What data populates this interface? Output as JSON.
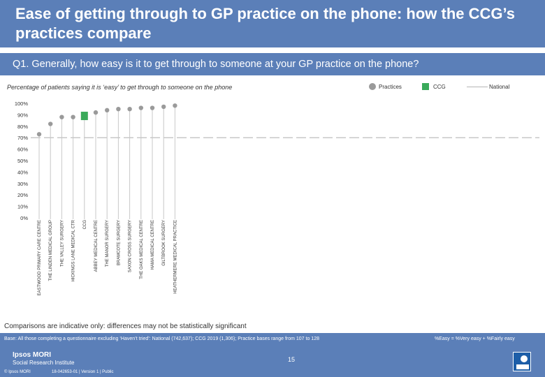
{
  "header": {
    "title": "Ease of getting through to GP practice on the phone: how the CCG’s practices compare",
    "question": "Q1. Generally, how easy is it to get through to someone at your GP practice on the phone?"
  },
  "subtitle": "Percentage of patients saying it is ‘easy’ to get through to someone on the phone",
  "legend": {
    "practices": "Practices",
    "ccg": "CCG",
    "national": "National"
  },
  "chart_data": {
    "type": "scatter",
    "categories": [
      "EASTWOOD PRIMARY CARE CENTRE",
      "THE LINDEN MEDICAL GROUP",
      "THE VALLEY SURGERY",
      "HICKINGS LANE MEDICAL CTR",
      "CCG",
      "ABBEY MEDICAL CENTRE",
      "THE MANOR SURGERY",
      "BRAMCOTE SURGERY",
      "SAXON CROSS SURGERY",
      "THE OAKS MEDICAL CENTRE",
      "HAMA MEDICAL CENTRE",
      "GILTBROOK SURGERY",
      "HEATHERMERE MEDICAL PRACTICE"
    ],
    "series": [
      {
        "name": "Practices",
        "values": [
          73,
          82,
          88,
          88,
          null,
          92,
          94,
          95,
          95,
          96,
          96,
          97,
          98
        ]
      },
      {
        "name": "CCG",
        "values": [
          null,
          null,
          null,
          null,
          89,
          null,
          null,
          null,
          null,
          null,
          null,
          null,
          null
        ]
      }
    ],
    "national": 70,
    "ylim": [
      0,
      100
    ],
    "yticks": [
      "0%",
      "10%",
      "20%",
      "30%",
      "40%",
      "50%",
      "60%",
      "70%",
      "80%",
      "90%",
      "100%"
    ],
    "colors": {
      "practices": "#9a9a9a",
      "ccg": "#3aaa5a",
      "national": "#b5b5b5",
      "stem": "#c8c8c8"
    }
  },
  "footer": {
    "note": "Comparisons are indicative only: differences may not be statistically significant",
    "base": "Base: All those completing a questionnaire excluding ‘Haven’t tried’: National (742,637); CCG 2019 (1,306); Practice bases range from 107 to 128",
    "formula": "%Easy = %Very easy + %Fairly easy",
    "logo_name": "Ipsos MORI",
    "logo_sub": "Social Research Institute",
    "copyright": "© Ipsos MORI",
    "jobref": "18-042653-01 | Version 1 | Public",
    "page": "15"
  }
}
